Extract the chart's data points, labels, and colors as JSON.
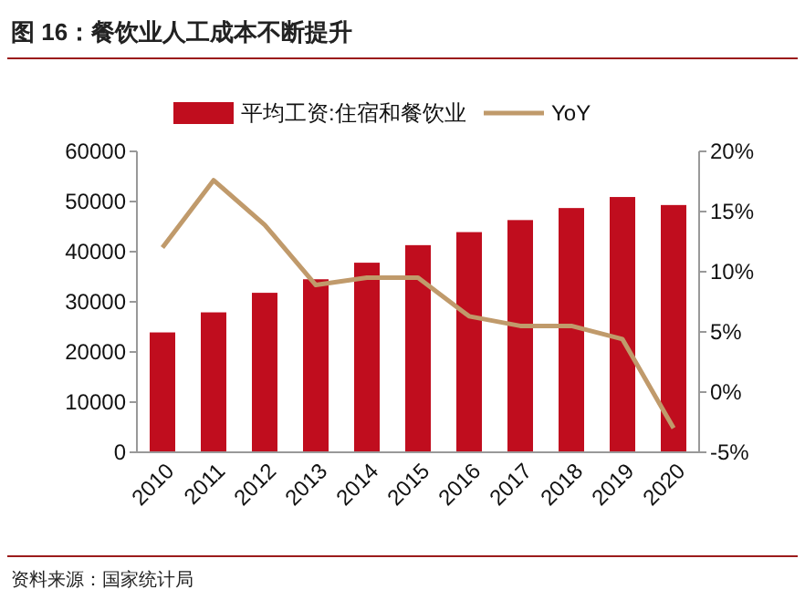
{
  "chart_data": {
    "type": "bar",
    "title": "图 16：餐饮业人工成本不断提升",
    "categories": [
      "2010",
      "2011",
      "2012",
      "2013",
      "2014",
      "2015",
      "2016",
      "2017",
      "2018",
      "2019",
      "2020"
    ],
    "series": [
      {
        "name": "平均工资:住宿和餐饮业",
        "color": "#c00d1e",
        "values": [
          23900,
          27900,
          31800,
          34500,
          37800,
          41300,
          43900,
          46300,
          48700,
          50900,
          49300
        ]
      },
      {
        "name": "YoY",
        "type": "line",
        "axis": "y2",
        "color": "#c09a6b",
        "values": [
          12.0,
          17.6,
          13.9,
          8.9,
          9.5,
          9.5,
          6.3,
          5.5,
          5.5,
          4.4,
          -3.0
        ]
      }
    ],
    "ylim": [
      0,
      60000
    ],
    "yticks": [
      0,
      10000,
      20000,
      30000,
      40000,
      50000,
      60000
    ],
    "y2lim": [
      -5,
      20
    ],
    "y2ticks": [
      {
        "value": -5,
        "label": "-5%"
      },
      {
        "value": 0,
        "label": "0%"
      },
      {
        "value": 5,
        "label": "5%"
      },
      {
        "value": 10,
        "label": "10%"
      },
      {
        "value": 15,
        "label": "15%"
      },
      {
        "value": 20,
        "label": "20%"
      }
    ],
    "legend": "top",
    "grid": false,
    "annotations": [
      "资料来源：国家统计局"
    ]
  }
}
